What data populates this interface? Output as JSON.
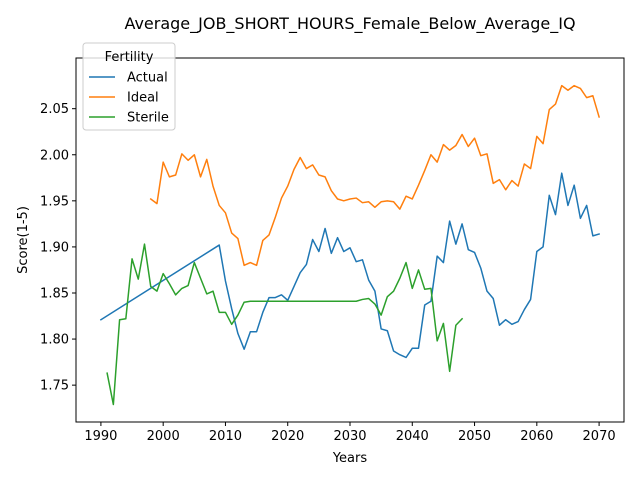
{
  "chart_data": {
    "type": "line",
    "title": "Average_JOB_SHORT_HOURS_Female_Below_Average_IQ",
    "xlabel": "Years",
    "ylabel": "Score(1-5)",
    "xlim": [
      1986,
      2074
    ],
    "ylim": [
      1.71,
      2.105
    ],
    "xticks": [
      1990,
      2000,
      2010,
      2020,
      2030,
      2040,
      2050,
      2060,
      2070
    ],
    "yticks": [
      1.75,
      1.8,
      1.85,
      1.9,
      1.95,
      2.0,
      2.05
    ],
    "ytick_labels": [
      "1.75",
      "1.80",
      "1.85",
      "1.90",
      "1.95",
      "2.00",
      "2.05"
    ],
    "grid": false,
    "legend": {
      "title": "Fertility",
      "position": "top-left"
    },
    "series": [
      {
        "name": "Actual",
        "color": "#1f77b4",
        "x": [
          1990,
          2009,
          2010,
          2011,
          2012,
          2013,
          2014,
          2015,
          2016,
          2017,
          2018,
          2019,
          2020,
          2021,
          2022,
          2023,
          2024,
          2025,
          2026,
          2027,
          2028,
          2029,
          2030,
          2031,
          2032,
          2033,
          2034,
          2035,
          2036,
          2037,
          2038,
          2039,
          2040,
          2041,
          2042,
          2043,
          2044,
          2045,
          2046,
          2047,
          2048,
          2049,
          2050,
          2051,
          2052,
          2053,
          2054,
          2055,
          2056,
          2057,
          2058,
          2059,
          2060,
          2061,
          2062,
          2063,
          2064,
          2065,
          2066,
          2067,
          2068,
          2069,
          2070
        ],
        "y": [
          1.821,
          1.902,
          1.863,
          1.833,
          1.806,
          1.789,
          1.808,
          1.808,
          1.829,
          1.845,
          1.845,
          1.848,
          1.842,
          1.857,
          1.872,
          1.881,
          1.908,
          1.895,
          1.92,
          1.893,
          1.91,
          1.895,
          1.899,
          1.884,
          1.886,
          1.864,
          1.852,
          1.811,
          1.809,
          1.787,
          1.783,
          1.78,
          1.79,
          1.79,
          1.837,
          1.841,
          1.89,
          1.883,
          1.928,
          1.903,
          1.925,
          1.897,
          1.894,
          1.877,
          1.852,
          1.844,
          1.815,
          1.821,
          1.816,
          1.819,
          1.832,
          1.843,
          1.895,
          1.9,
          1.956,
          1.935,
          1.98,
          1.945,
          1.967,
          1.931,
          1.945,
          1.912,
          1.914
        ]
      },
      {
        "name": "Ideal",
        "color": "#ff7f0e",
        "x": [
          1998,
          1999,
          2000,
          2001,
          2002,
          2003,
          2004,
          2005,
          2006,
          2007,
          2008,
          2009,
          2010,
          2011,
          2012,
          2013,
          2014,
          2015,
          2016,
          2017,
          2018,
          2019,
          2020,
          2021,
          2022,
          2023,
          2024,
          2025,
          2026,
          2027,
          2028,
          2029,
          2030,
          2031,
          2032,
          2033,
          2034,
          2035,
          2036,
          2037,
          2038,
          2039,
          2040,
          2041,
          2042,
          2043,
          2044,
          2045,
          2046,
          2047,
          2048,
          2049,
          2050,
          2051,
          2052,
          2053,
          2054,
          2055,
          2056,
          2057,
          2058,
          2059,
          2060,
          2061,
          2062,
          2063,
          2064,
          2065,
          2066,
          2067,
          2068,
          2069,
          2070
        ],
        "y": [
          1.952,
          1.947,
          1.992,
          1.976,
          1.978,
          2.001,
          1.994,
          2.0,
          1.976,
          1.995,
          1.966,
          1.945,
          1.937,
          1.915,
          1.909,
          1.88,
          1.883,
          1.88,
          1.907,
          1.913,
          1.932,
          1.953,
          1.966,
          1.984,
          1.997,
          1.985,
          1.989,
          1.978,
          1.976,
          1.961,
          1.952,
          1.95,
          1.952,
          1.953,
          1.948,
          1.949,
          1.943,
          1.949,
          1.95,
          1.949,
          1.941,
          1.955,
          1.952,
          1.967,
          1.983,
          2.0,
          1.992,
          2.011,
          2.005,
          2.01,
          2.022,
          2.009,
          2.018,
          1.999,
          2.001,
          1.969,
          1.973,
          1.962,
          1.972,
          1.966,
          1.99,
          1.985,
          2.02,
          2.012,
          2.049,
          2.055,
          2.075,
          2.07,
          2.075,
          2.072,
          2.062,
          2.064,
          2.041
        ]
      },
      {
        "name": "Sterile",
        "color": "#2ca02c",
        "x": [
          1991,
          1992,
          1993,
          1994,
          1995,
          1996,
          1997,
          1998,
          1999,
          2000,
          2001,
          2002,
          2003,
          2004,
          2005,
          2006,
          2007,
          2008,
          2009,
          2010,
          2011,
          2012,
          2013,
          2014,
          2015,
          2016,
          2017,
          2018,
          2019,
          2020,
          2021,
          2022,
          2023,
          2024,
          2025,
          2026,
          2027,
          2028,
          2029,
          2030,
          2031,
          2032,
          2033,
          2034,
          2035,
          2036,
          2037,
          2038,
          2039,
          2040,
          2041,
          2042,
          2043,
          2044,
          2045,
          2046,
          2047,
          2048
        ],
        "y": [
          1.763,
          1.729,
          1.821,
          1.822,
          1.887,
          1.865,
          1.903,
          1.857,
          1.852,
          1.871,
          1.86,
          1.848,
          1.855,
          1.858,
          1.883,
          1.866,
          1.849,
          1.852,
          1.829,
          1.829,
          1.816,
          1.826,
          1.84,
          1.841,
          1.841,
          1.841,
          1.841,
          1.841,
          1.841,
          1.841,
          1.841,
          1.841,
          1.841,
          1.841,
          1.841,
          1.841,
          1.841,
          1.841,
          1.841,
          1.841,
          1.841,
          1.843,
          1.844,
          1.838,
          1.826,
          1.846,
          1.852,
          1.866,
          1.883,
          1.855,
          1.875,
          1.854,
          1.855,
          1.798,
          1.817,
          1.765,
          1.815,
          1.822
        ]
      }
    ]
  }
}
